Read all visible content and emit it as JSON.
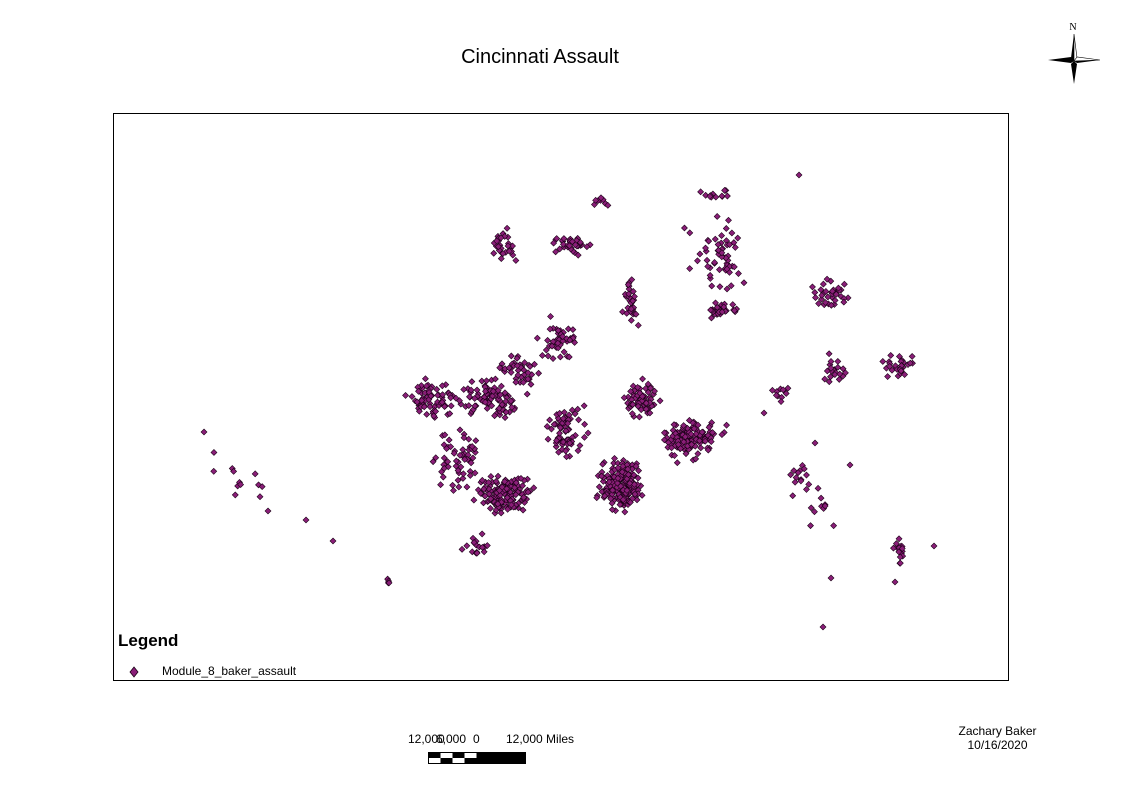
{
  "map": {
    "title": "Cincinnati Assault",
    "north_label": "N",
    "point_color": "#8a1e78",
    "point_outline": "#1a0016"
  },
  "legend": {
    "title": "Legend",
    "items": [
      {
        "label": "Module_8_baker_assault"
      }
    ]
  },
  "scalebar": {
    "left_label": "12,000",
    "left_overlap_label": "6,000",
    "zero_label": "0",
    "right_label": "12,000 Miles"
  },
  "author": {
    "name": "Zachary Baker",
    "date": "10/16/2020"
  }
}
